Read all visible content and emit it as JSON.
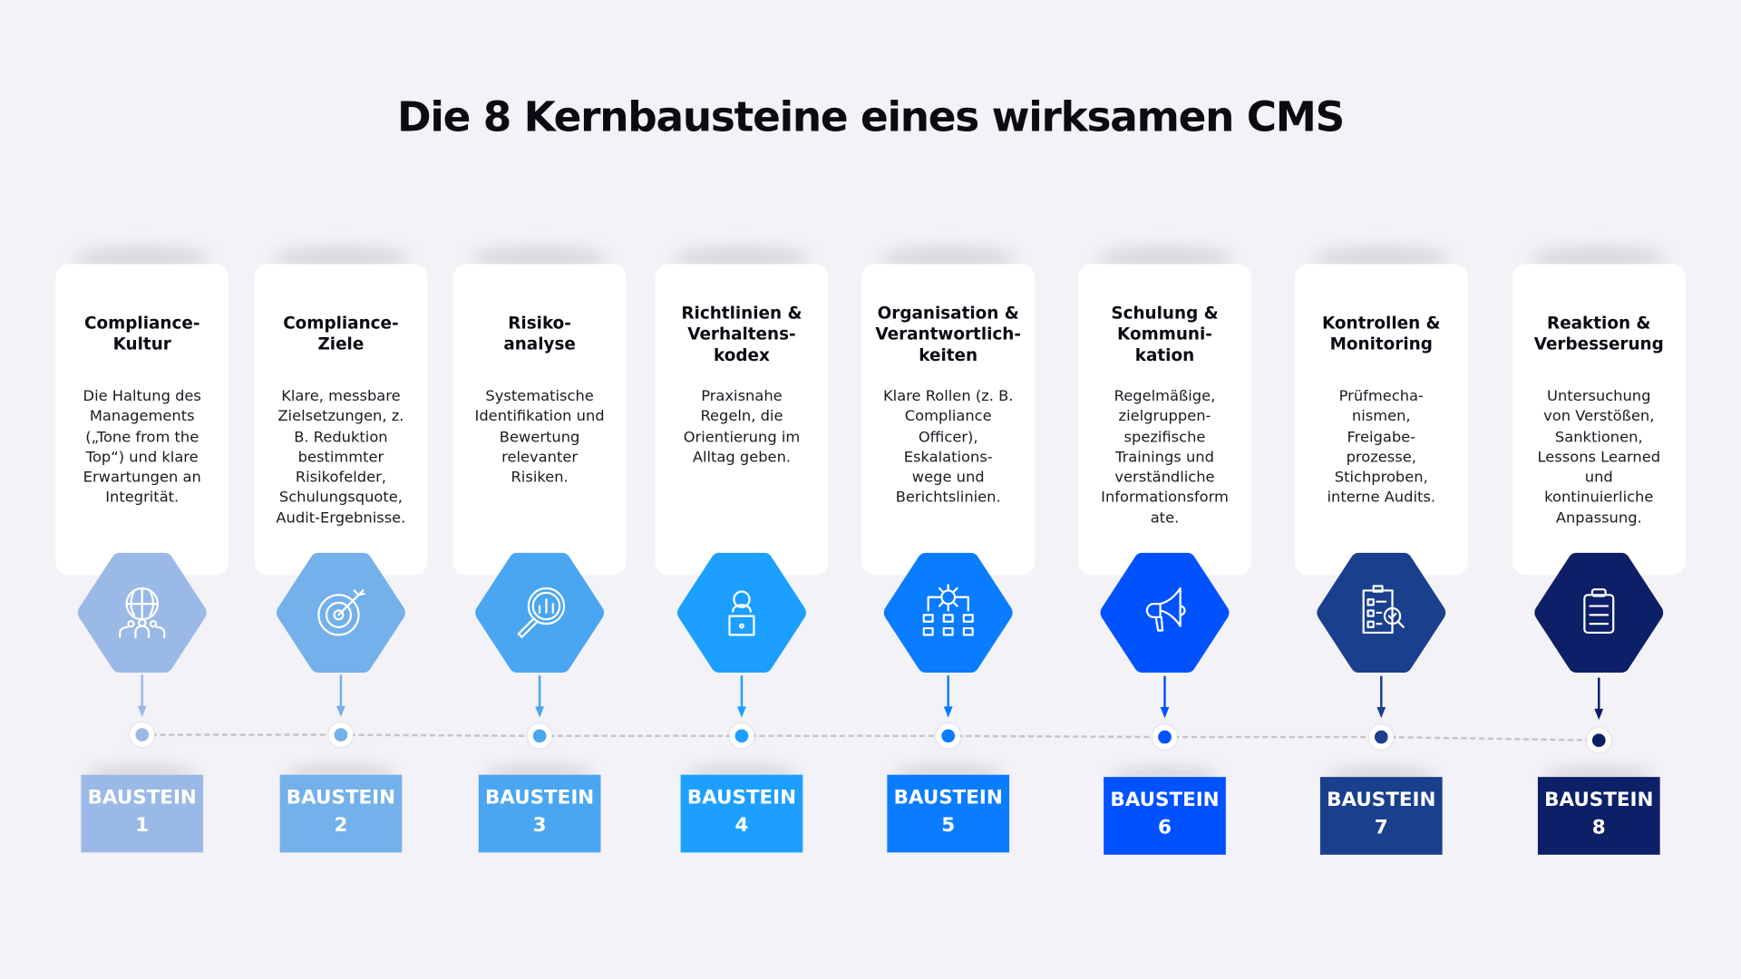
{
  "title": "Die 8 Kernbausteine eines wirksamen CMS",
  "connector_color": "#c4c4cc",
  "cards": [
    {
      "title": "Compliance-\nKultur",
      "text": "Die Haltung des\nManagements\n(„Tone from the\nTop“) und klare\nErwartungen an\nIntegrität.",
      "badge": "BAUSTEIN\n1",
      "color": "#9bb9e6",
      "icon": "globe-people-icon"
    },
    {
      "title": "Compliance-\nZiele",
      "text": "Klare, messbare\nZielsetzungen, z.\nB. Reduktion\nbestimmter\nRisikofelder,\nSchulungsquote,\nAudit-Ergebnisse.",
      "badge": "BAUSTEIN\n2",
      "color": "#74b0ea",
      "icon": "target-arrow-icon"
    },
    {
      "title": "Risiko-\nanalyse",
      "text": "Systematische\nIdentifikation und\nBewertung\nrelevanter\nRisiken.",
      "badge": "BAUSTEIN\n3",
      "color": "#4aa6f0",
      "icon": "magnifier-chart-icon"
    },
    {
      "title": "Richtlinien &\nVerhaltens-\nkodex",
      "text": "Praxisnahe\nRegeln, die\nOrientierung im\nAlltag geben.",
      "badge": "BAUSTEIN\n4",
      "color": "#1c9fff",
      "icon": "person-laptop-icon"
    },
    {
      "title": "Organisation &\nVerantwortlich-\nkeiten",
      "text": "Klare Rollen (z. B.\nCompliance\nOfficer),\nEskalations-\nwege und\nBerichtslinien.",
      "badge": "BAUSTEIN\n5",
      "color": "#0a7cff",
      "icon": "gear-hierarchy-icon"
    },
    {
      "title": "Schulung &\nKommuni-\nkation",
      "text": "Regelmäßige,\nzielgruppen-\nspezifische\nTrainings und\nverständliche\nInformationsform\nate.",
      "badge": "BAUSTEIN\n6",
      "color": "#0052ff",
      "icon": "megaphone-icon"
    },
    {
      "title": "Kontrollen &\nMonitoring",
      "text": "Prüfmecha-\nnismen,\nFreigabe-\nprozesse,\nStichproben,\ninterne Audits.",
      "badge": "BAUSTEIN\n7",
      "color": "#1a3f8c",
      "icon": "checklist-magnifier-icon"
    },
    {
      "title": "Reaktion &\nVerbesserung",
      "text": "Untersuchung\nvon Verstößen,\nSanktionen,\nLessons Learned\nund\nkontinuierliche\nAnpassung.",
      "badge": "BAUSTEIN\n8",
      "color": "#0d1f66",
      "icon": "clipboard-icon"
    }
  ]
}
